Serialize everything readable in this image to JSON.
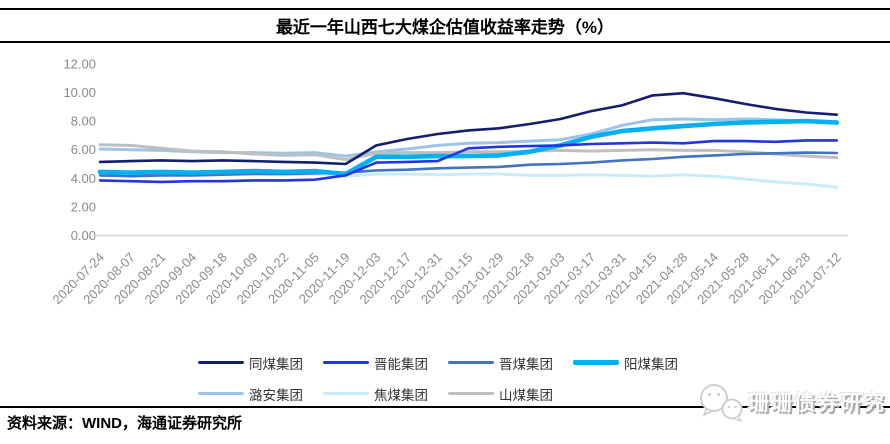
{
  "header": {
    "title": "最近一年山西七大煤企估值收益率走势（%）"
  },
  "chart_data": {
    "type": "line",
    "title": "最近一年山西七大煤企估值收益率走势（%）",
    "xlabel": "",
    "ylabel": "",
    "ylim": [
      0,
      12
    ],
    "ytick_labels_top_down": [
      "12.00",
      "10.00",
      "8.00",
      "6.00",
      "4.00",
      "2.00",
      "0.00"
    ],
    "grid": false,
    "legend_position": "bottom",
    "x": [
      "2020-07-24",
      "2020-08-07",
      "2020-08-21",
      "2020-09-04",
      "2020-09-18",
      "2020-10-09",
      "2020-10-22",
      "2020-11-05",
      "2020-11-19",
      "2020-12-03",
      "2020-12-17",
      "2020-12-31",
      "2021-01-15",
      "2021-01-29",
      "2021-02-18",
      "2021-03-03",
      "2021-03-17",
      "2021-03-31",
      "2021-04-15",
      "2021-04-28",
      "2021-05-14",
      "2021-05-28",
      "2021-06-11",
      "2021-06-28",
      "2021-07-12"
    ],
    "series": [
      {
        "name": "同煤集团",
        "color": "#141e6e",
        "width": 2.6,
        "values": [
          5.15,
          5.2,
          5.25,
          5.2,
          5.25,
          5.2,
          5.15,
          5.1,
          5.0,
          6.3,
          6.75,
          7.1,
          7.35,
          7.5,
          7.8,
          8.15,
          8.7,
          9.1,
          9.8,
          9.95,
          9.6,
          9.2,
          8.85,
          8.6,
          8.45
        ]
      },
      {
        "name": "晋能集团",
        "color": "#2135e0",
        "width": 2.6,
        "values": [
          3.85,
          3.8,
          3.75,
          3.8,
          3.8,
          3.85,
          3.85,
          3.9,
          4.2,
          5.1,
          5.15,
          5.2,
          6.1,
          6.2,
          6.25,
          6.3,
          6.4,
          6.45,
          6.5,
          6.45,
          6.6,
          6.6,
          6.55,
          6.65,
          6.65
        ]
      },
      {
        "name": "晋煤集团",
        "color": "#4472c4",
        "width": 2.6,
        "values": [
          4.2,
          4.15,
          4.2,
          4.2,
          4.25,
          4.3,
          4.3,
          4.35,
          4.4,
          4.55,
          4.6,
          4.7,
          4.75,
          4.8,
          4.95,
          5.0,
          5.1,
          5.25,
          5.35,
          5.5,
          5.6,
          5.7,
          5.75,
          5.8,
          5.77
        ]
      },
      {
        "name": "阳煤集团",
        "color": "#00b0f0",
        "width": 4.6,
        "values": [
          4.45,
          4.4,
          4.45,
          4.4,
          4.45,
          4.5,
          4.45,
          4.5,
          4.3,
          5.5,
          5.5,
          5.55,
          5.55,
          5.6,
          5.85,
          6.3,
          6.9,
          7.3,
          7.5,
          7.65,
          7.8,
          7.9,
          7.95,
          8.0,
          7.9
        ]
      },
      {
        "name": "潞安集团",
        "color": "#9dc3e6",
        "width": 3.0,
        "values": [
          6.05,
          6.0,
          5.95,
          5.85,
          5.8,
          5.8,
          5.75,
          5.8,
          5.55,
          5.85,
          6.05,
          6.3,
          6.45,
          6.5,
          6.6,
          6.7,
          7.1,
          7.7,
          8.1,
          8.15,
          8.1,
          8.15,
          8.1,
          8.0,
          7.85
        ]
      },
      {
        "name": "焦煤集团",
        "color": "#c9ecf8",
        "width": 3.0,
        "values": [
          4.35,
          4.3,
          4.3,
          4.25,
          4.3,
          4.3,
          4.25,
          4.3,
          4.15,
          4.3,
          4.3,
          4.25,
          4.3,
          4.3,
          4.2,
          4.2,
          4.25,
          4.2,
          4.15,
          4.25,
          4.15,
          3.95,
          3.75,
          3.6,
          3.38
        ]
      },
      {
        "name": "山煤集团",
        "color": "#bfbfbf",
        "width": 3.0,
        "values": [
          6.35,
          6.3,
          6.1,
          5.9,
          5.85,
          5.7,
          5.6,
          5.65,
          5.3,
          5.75,
          5.8,
          5.8,
          5.85,
          5.85,
          5.9,
          5.95,
          5.9,
          5.95,
          6.0,
          5.95,
          5.95,
          5.85,
          5.7,
          5.55,
          5.45
        ]
      }
    ],
    "draw_order": [
      "焦煤集团",
      "潞安集团",
      "山煤集团",
      "晋煤集团",
      "阳煤集团",
      "晋能集团",
      "同煤集团"
    ]
  },
  "footer": {
    "source": "资料来源：WIND，海通证券研究所"
  },
  "watermark": {
    "text": "珊珊债券研究",
    "icon": "wechat-bubbles-icon"
  }
}
